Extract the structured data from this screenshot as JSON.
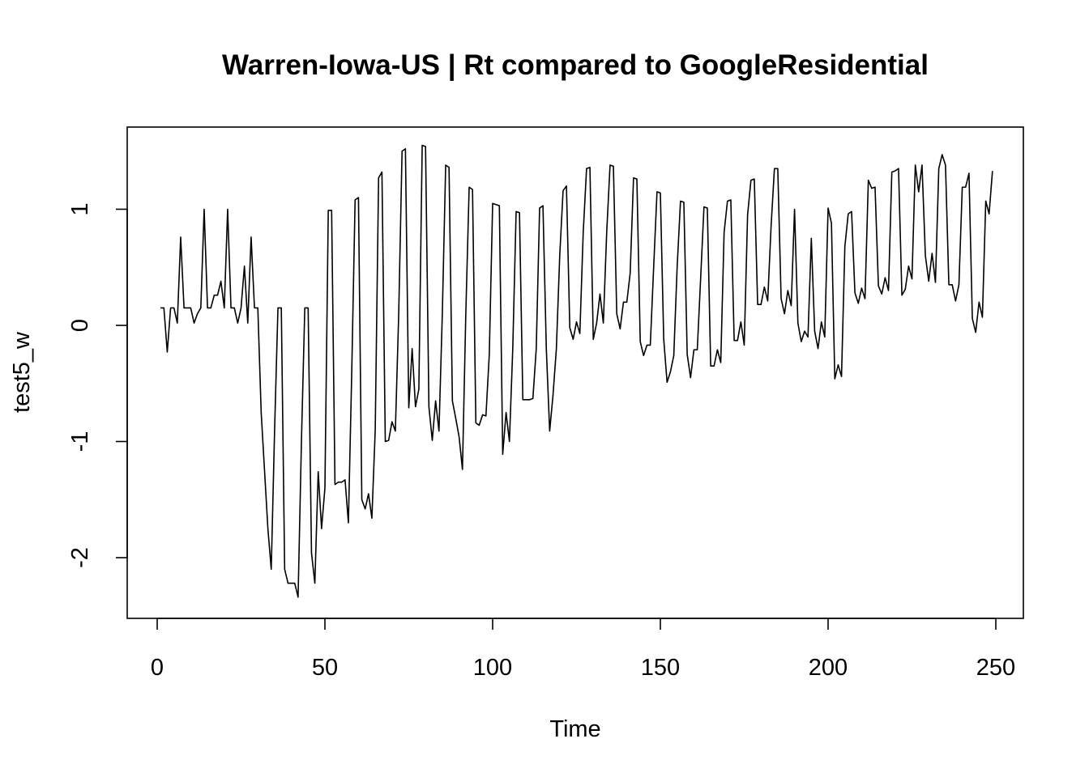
{
  "chart_data": {
    "type": "line",
    "title": "Warren-Iowa-US | Rt compared to GoogleResidential",
    "xlabel": "Time",
    "ylabel": "test5_w",
    "xlim": [
      0,
      250
    ],
    "ylim": [
      -2.5,
      1.8
    ],
    "xticks": [
      0,
      50,
      100,
      150,
      200,
      250
    ],
    "xtick_labels": [
      "0",
      "50",
      "100",
      "150",
      "200",
      "250"
    ],
    "yticks": [
      -2,
      -1,
      0,
      1
    ],
    "ytick_labels": [
      "-2",
      "-1",
      "0",
      "1"
    ],
    "grid": false,
    "legend": "none",
    "line_color": "#000000",
    "series": [
      {
        "x_start": 1,
        "x_step": 1,
        "values": [
          0.15,
          0.15,
          -0.23,
          0.15,
          0.15,
          0.02,
          0.76,
          0.15,
          0.15,
          0.15,
          0.02,
          0.1,
          0.15,
          1.0,
          0.15,
          0.15,
          0.26,
          0.26,
          0.38,
          0.15,
          1.0,
          0.15,
          0.15,
          0.02,
          0.15,
          0.51,
          0.02,
          0.76,
          0.15,
          0.15,
          -0.75,
          -1.25,
          -1.75,
          -2.1,
          -0.9,
          0.15,
          0.15,
          -2.1,
          -2.22,
          -2.22,
          -2.22,
          -2.34,
          -1.0,
          0.15,
          0.15,
          -1.96,
          -2.22,
          -1.26,
          -1.75,
          -1.4,
          0.99,
          0.99,
          -1.37,
          -1.35,
          -1.35,
          -1.33,
          -1.7,
          -0.4,
          1.08,
          1.1,
          -1.5,
          -1.58,
          -1.45,
          -1.66,
          -0.9,
          1.27,
          1.32,
          -1.0,
          -0.99,
          -0.83,
          -0.91,
          0.1,
          1.5,
          1.52,
          -0.71,
          -0.2,
          -0.7,
          -0.55,
          1.55,
          1.54,
          -0.7,
          -0.99,
          -0.65,
          -0.91,
          0.1,
          1.38,
          1.36,
          -0.65,
          -0.8,
          -0.96,
          -1.24,
          0.1,
          1.19,
          1.17,
          -0.84,
          -0.86,
          -0.77,
          -0.78,
          -0.25,
          1.05,
          1.04,
          1.03,
          -1.11,
          -0.75,
          -1.0,
          -0.2,
          0.98,
          0.97,
          -0.64,
          -0.64,
          -0.64,
          -0.63,
          -0.2,
          1.01,
          1.03,
          -0.2,
          -0.91,
          -0.6,
          -0.2,
          0.6,
          1.16,
          1.2,
          -0.02,
          -0.12,
          0.03,
          -0.07,
          0.8,
          1.35,
          1.36,
          -0.12,
          0.02,
          0.27,
          0.02,
          0.8,
          1.38,
          1.37,
          0.1,
          -0.03,
          0.2,
          0.2,
          0.45,
          1.27,
          1.26,
          -0.14,
          -0.26,
          -0.17,
          -0.17,
          0.5,
          1.15,
          1.14,
          -0.12,
          -0.49,
          -0.4,
          -0.26,
          0.5,
          1.07,
          1.06,
          -0.25,
          -0.45,
          -0.21,
          -0.21,
          0.4,
          1.02,
          1.01,
          -0.35,
          -0.35,
          -0.21,
          -0.32,
          0.8,
          1.07,
          1.08,
          -0.13,
          -0.13,
          0.03,
          -0.17,
          0.95,
          1.25,
          1.26,
          0.18,
          0.18,
          0.33,
          0.21,
          0.85,
          1.35,
          1.35,
          0.23,
          0.1,
          0.3,
          0.17,
          1.0,
          0.02,
          -0.14,
          -0.05,
          -0.1,
          0.75,
          -0.05,
          -0.2,
          0.03,
          -0.1,
          1.01,
          0.88,
          -0.46,
          -0.34,
          -0.44,
          0.68,
          0.96,
          0.98,
          0.28,
          0.19,
          0.32,
          0.23,
          1.25,
          1.18,
          1.19,
          0.34,
          0.27,
          0.41,
          0.3,
          1.32,
          1.33,
          1.35,
          0.26,
          0.31,
          0.51,
          0.4,
          1.38,
          1.15,
          1.38,
          0.6,
          0.38,
          0.62,
          0.37,
          1.35,
          1.47,
          1.38,
          0.35,
          0.35,
          0.21,
          0.35,
          1.19,
          1.19,
          1.31,
          0.06,
          -0.06,
          0.2,
          0.07,
          1.07,
          0.96,
          1.33
        ]
      }
    ]
  }
}
